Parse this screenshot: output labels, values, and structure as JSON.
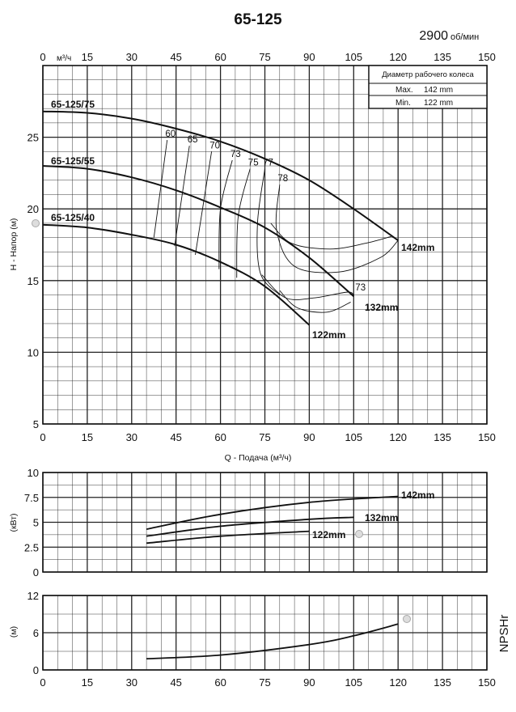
{
  "title": "65-125",
  "speed": {
    "value": "2900",
    "unit": "об/мин"
  },
  "top_axis_unit": "м³/ч",
  "diameter_box": {
    "header": "Диаметр рабочего колеса",
    "rows": [
      {
        "label": "Max.",
        "value": "142 mm"
      },
      {
        "label": "Min.",
        "value": "122 mm"
      }
    ]
  },
  "side_label": "NPSHr",
  "colors": {
    "curve": "#111111",
    "grid": "#222222",
    "marker": "#dddddd"
  },
  "chart_data": [
    {
      "id": "head",
      "type": "line",
      "xlabel": "Q - Подача (м³/ч)",
      "ylabel": "H - Напор (м)",
      "xlim": [
        0,
        150
      ],
      "ylim": [
        5,
        30
      ],
      "x_ticks": [
        0,
        15,
        30,
        45,
        60,
        75,
        90,
        105,
        120,
        135,
        150
      ],
      "y_ticks": [
        5,
        10,
        15,
        20,
        25
      ],
      "grid": true,
      "series": [
        {
          "name": "142mm",
          "curve_label": "65-125/75",
          "values": [
            [
              0,
              26.8
            ],
            [
              15,
              26.7
            ],
            [
              30,
              26.3
            ],
            [
              45,
              25.6
            ],
            [
              60,
              24.7
            ],
            [
              75,
              23.5
            ],
            [
              90,
              22
            ],
            [
              105,
              20
            ],
            [
              120,
              17.8
            ]
          ]
        },
        {
          "name": "132mm",
          "curve_label": "65-125/55",
          "values": [
            [
              0,
              23
            ],
            [
              15,
              22.8
            ],
            [
              30,
              22.2
            ],
            [
              45,
              21.3
            ],
            [
              60,
              20.1
            ],
            [
              75,
              18.7
            ],
            [
              90,
              16.6
            ],
            [
              105,
              13.9
            ]
          ]
        },
        {
          "name": "122mm",
          "curve_label": "65-125/40",
          "values": [
            [
              0,
              18.9
            ],
            [
              15,
              18.7
            ],
            [
              30,
              18.2
            ],
            [
              45,
              17.5
            ],
            [
              60,
              16.3
            ],
            [
              75,
              14.6
            ],
            [
              90,
              11.9
            ]
          ]
        }
      ],
      "efficiency_curves": [
        {
          "label": "60",
          "values": [
            [
              42,
              24.8
            ],
            [
              37.5,
              18
            ]
          ]
        },
        {
          "label": "65",
          "values": [
            [
              49.5,
              24.4
            ],
            [
              44.5,
              17.4
            ]
          ]
        },
        {
          "label": "70",
          "values": [
            [
              57,
              24
            ],
            [
              51.5,
              16.8
            ]
          ]
        },
        {
          "label": "73",
          "values": [
            [
              64,
              23.4
            ],
            [
              60,
              20
            ],
            [
              59.5,
              15.8
            ]
          ]
        },
        {
          "label": "75",
          "values": [
            [
              70,
              22.8
            ],
            [
              66,
              19.5
            ],
            [
              65.5,
              15.2
            ]
          ]
        },
        {
          "label": "77",
          "values": [
            [
              75,
              22.8
            ],
            [
              72.5,
              19
            ],
            [
              73.5,
              15.5
            ],
            [
              80,
              14
            ]
          ]
        },
        {
          "label": "78",
          "values": [
            [
              80,
              21.7
            ],
            [
              79,
              18.5
            ],
            [
              85,
              16
            ],
            [
              100,
              15.6
            ],
            [
              114,
              16.6
            ],
            [
              120,
              17.8
            ]
          ]
        },
        {
          "label": "",
          "values": [
            [
              77,
              19
            ],
            [
              84,
              17.6
            ],
            [
              97,
              17.2
            ],
            [
              109,
              17.6
            ],
            [
              118,
              18.1
            ]
          ]
        },
        {
          "label": "73",
          "values": [
            [
              74,
              15.4
            ],
            [
              82,
              13.8
            ],
            [
              92,
              13.8
            ],
            [
              103,
              14.2
            ],
            [
              105,
              13.9
            ]
          ]
        },
        {
          "label": "",
          "values": [
            [
              80,
              14.3
            ],
            [
              86,
              13.1
            ],
            [
              96,
              12.8
            ],
            [
              104,
              13.5
            ]
          ]
        }
      ]
    },
    {
      "id": "power",
      "type": "line",
      "ylabel": "(кВт)",
      "xlim": [
        0,
        150
      ],
      "ylim": [
        0,
        10
      ],
      "y_ticks": [
        0,
        2.5,
        5,
        7.5,
        10
      ],
      "grid": true,
      "series": [
        {
          "name": "142mm",
          "values": [
            [
              35,
              4.3
            ],
            [
              60,
              5.8
            ],
            [
              90,
              7
            ],
            [
              120,
              7.6
            ]
          ]
        },
        {
          "name": "132mm",
          "values": [
            [
              35,
              3.6
            ],
            [
              60,
              4.6
            ],
            [
              90,
              5.3
            ],
            [
              105,
              5.5
            ]
          ]
        },
        {
          "name": "122mm",
          "values": [
            [
              35,
              2.9
            ],
            [
              60,
              3.6
            ],
            [
              90,
              4.1
            ]
          ]
        }
      ]
    },
    {
      "id": "npsh",
      "type": "line",
      "ylabel": "(м)",
      "xlim": [
        0,
        150
      ],
      "ylim": [
        0,
        12
      ],
      "x_ticks": [
        0,
        15,
        30,
        45,
        60,
        75,
        90,
        105,
        120,
        135,
        150
      ],
      "y_ticks": [
        0,
        6,
        12
      ],
      "grid": true,
      "series": [
        {
          "name": "",
          "values": [
            [
              35,
              1.8
            ],
            [
              60,
              2.4
            ],
            [
              90,
              4.1
            ],
            [
              105,
              5.5
            ],
            [
              120,
              7.4
            ]
          ]
        }
      ]
    }
  ]
}
